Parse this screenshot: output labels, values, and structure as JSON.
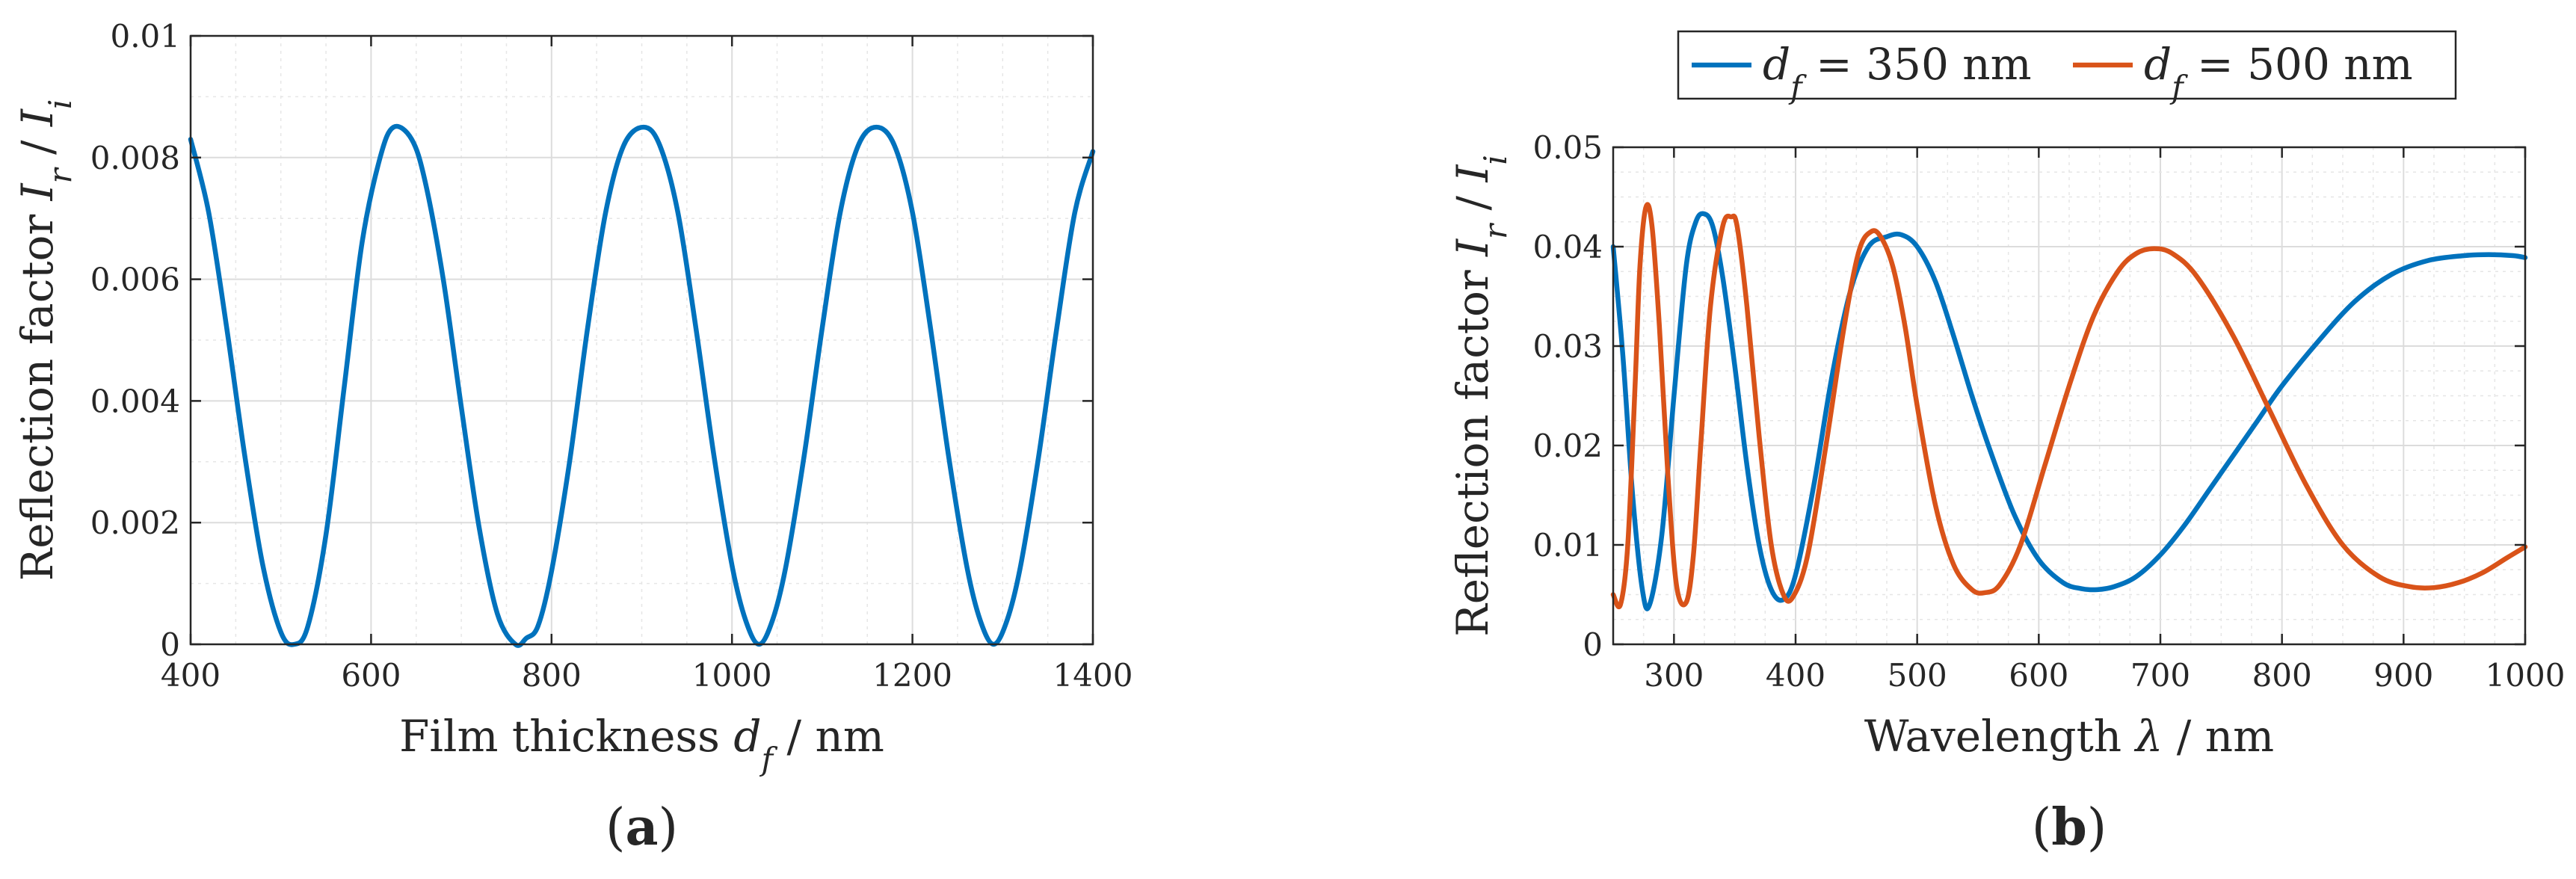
{
  "chart_data": [
    {
      "type": "line",
      "panel_label": "(a)",
      "xlabel": "Film thickness d_f / nm",
      "xlabel_parts": {
        "pre": "Film thickness ",
        "var": "d",
        "sub": "f",
        "post": " / nm"
      },
      "ylabel": "Reflection factor I_r / I_i",
      "ylabel_parts": {
        "pre": "Reflection factor ",
        "var1": "I",
        "sub1": "r",
        "mid": " / ",
        "var2": "I",
        "sub2": "i"
      },
      "xlim": [
        400,
        1400
      ],
      "ylim": [
        0,
        0.01
      ],
      "xticks": [
        400,
        600,
        800,
        1000,
        1200,
        1400
      ],
      "xtick_labels": [
        "400",
        "600",
        "800",
        "1000",
        "1200",
        "1400"
      ],
      "yticks": [
        0,
        0.002,
        0.004,
        0.006,
        0.008,
        0.01
      ],
      "ytick_labels": [
        "0",
        "0.002",
        "0.004",
        "0.006",
        "0.008",
        "0.01"
      ],
      "grid": true,
      "series": [
        {
          "color": "#0072BD",
          "x": [
            400,
            420,
            440,
            460,
            480,
            500,
            515,
            530,
            550,
            570,
            590,
            610,
            625,
            645,
            660,
            680,
            700,
            720,
            740,
            760,
            772,
            785,
            800,
            820,
            840,
            860,
            880,
            902,
            920,
            940,
            960,
            980,
            1000,
            1015,
            1030,
            1045,
            1060,
            1080,
            1100,
            1120,
            1140,
            1160,
            1180,
            1200,
            1220,
            1240,
            1260,
            1275,
            1290,
            1305,
            1320,
            1340,
            1360,
            1380,
            1400
          ],
          "y": [
            0.0083,
            0.0071,
            0.0052,
            0.0031,
            0.0013,
            0.0002,
            0.0,
            0.0003,
            0.0018,
            0.0042,
            0.0066,
            0.008,
            0.0085,
            0.0083,
            0.0076,
            0.006,
            0.0039,
            0.0019,
            0.0005,
            0.0,
            0.0001,
            0.0003,
            0.0012,
            0.003,
            0.0052,
            0.0071,
            0.0082,
            0.0085,
            0.0082,
            0.0071,
            0.0052,
            0.0031,
            0.0013,
            0.0004,
            0.0,
            0.0004,
            0.0013,
            0.0031,
            0.0052,
            0.0071,
            0.0082,
            0.0085,
            0.0082,
            0.0071,
            0.0052,
            0.0031,
            0.0013,
            0.0004,
            0.0,
            0.0004,
            0.0013,
            0.0031,
            0.0052,
            0.0071,
            0.0081
          ]
        }
      ]
    },
    {
      "type": "line",
      "panel_label": "(b)",
      "xlabel": "Wavelength λ / nm",
      "xlabel_parts": {
        "pre": "Wavelength ",
        "var": "λ",
        "post": " / nm"
      },
      "ylabel": "Reflection factor I_r / I_i",
      "ylabel_parts": {
        "pre": "Reflection factor ",
        "var1": "I",
        "sub1": "r",
        "mid": " / ",
        "var2": "I",
        "sub2": "i"
      },
      "xlim": [
        250,
        1000
      ],
      "ylim": [
        0,
        0.05
      ],
      "xticks": [
        300,
        400,
        500,
        600,
        700,
        800,
        900,
        1000
      ],
      "xtick_labels": [
        "300",
        "400",
        "500",
        "600",
        "700",
        "800",
        "900",
        "1000"
      ],
      "yticks": [
        0,
        0.01,
        0.02,
        0.03,
        0.04,
        0.05
      ],
      "ytick_labels": [
        "0",
        "0.01",
        "0.02",
        "0.03",
        "0.04",
        "0.05"
      ],
      "grid": true,
      "legend_position": "top-outside",
      "series": [
        {
          "name": "d_f = 350 nm",
          "name_parts": {
            "var": "d",
            "sub": "f",
            "post": " = 350 nm"
          },
          "color": "#0072BD",
          "x": [
            250,
            258,
            266,
            274,
            280,
            290,
            300,
            310,
            318,
            325,
            332,
            340,
            350,
            360,
            370,
            380,
            390,
            400,
            415,
            430,
            445,
            460,
            475,
            487,
            500,
            515,
            530,
            545,
            560,
            580,
            600,
            620,
            635,
            648,
            662,
            680,
            700,
            720,
            740,
            760,
            780,
            800,
            830,
            860,
            890,
            920,
            950,
            970,
            990,
            1000
          ],
          "y": [
            0.04,
            0.029,
            0.015,
            0.0055,
            0.004,
            0.011,
            0.025,
            0.038,
            0.0425,
            0.0433,
            0.042,
            0.037,
            0.028,
            0.018,
            0.01,
            0.0055,
            0.0045,
            0.007,
            0.016,
            0.027,
            0.0355,
            0.04,
            0.041,
            0.0412,
            0.04,
            0.0365,
            0.031,
            0.025,
            0.0195,
            0.013,
            0.0085,
            0.0062,
            0.0056,
            0.0055,
            0.0058,
            0.0068,
            0.009,
            0.012,
            0.0155,
            0.019,
            0.0225,
            0.026,
            0.0305,
            0.0345,
            0.0372,
            0.0386,
            0.0391,
            0.0392,
            0.0391,
            0.0389
          ]
        },
        {
          "name": "d_f = 500 nm",
          "name_parts": {
            "var": "d",
            "sub": "f",
            "post": " = 500 nm"
          },
          "color": "#D95319",
          "x": [
            250,
            256,
            262,
            268,
            272,
            277,
            282,
            288,
            295,
            302,
            310,
            316,
            322,
            330,
            340,
            347,
            352,
            360,
            370,
            380,
            390,
            398,
            410,
            425,
            440,
            452,
            462,
            470,
            480,
            490,
            500,
            515,
            530,
            545,
            556,
            568,
            585,
            605,
            625,
            645,
            665,
            680,
            695,
            710,
            730,
            760,
            790,
            820,
            850,
            880,
            905,
            925,
            945,
            965,
            985,
            1000
          ],
          "y": [
            0.005,
            0.004,
            0.01,
            0.026,
            0.038,
            0.044,
            0.042,
            0.032,
            0.017,
            0.006,
            0.0042,
            0.009,
            0.02,
            0.034,
            0.042,
            0.043,
            0.042,
            0.034,
            0.021,
            0.01,
            0.005,
            0.0048,
            0.009,
            0.02,
            0.032,
            0.0395,
            0.0415,
            0.041,
            0.038,
            0.032,
            0.024,
            0.014,
            0.008,
            0.0055,
            0.0052,
            0.006,
            0.01,
            0.018,
            0.026,
            0.033,
            0.0375,
            0.0393,
            0.0398,
            0.0393,
            0.037,
            0.031,
            0.0235,
            0.016,
            0.01,
            0.0068,
            0.0058,
            0.0057,
            0.0062,
            0.0072,
            0.0087,
            0.0098
          ]
        }
      ]
    }
  ]
}
